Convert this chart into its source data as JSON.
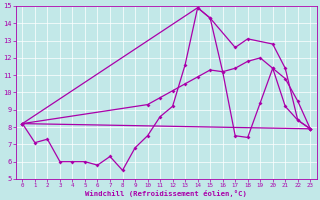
{
  "xlabel": "Windchill (Refroidissement éolien,°C)",
  "xlim": [
    -0.5,
    23.5
  ],
  "ylim": [
    5,
    15
  ],
  "xticks": [
    0,
    1,
    2,
    3,
    4,
    5,
    6,
    7,
    8,
    9,
    10,
    11,
    12,
    13,
    14,
    15,
    16,
    17,
    18,
    19,
    20,
    21,
    22,
    23
  ],
  "yticks": [
    5,
    6,
    7,
    8,
    9,
    10,
    11,
    12,
    13,
    14,
    15
  ],
  "bg_color": "#c2e8e8",
  "line_color": "#aa00aa",
  "line1_x": [
    0,
    1,
    2,
    3,
    4,
    5,
    6,
    7,
    8,
    9,
    10,
    11,
    12,
    13,
    14,
    15,
    16,
    17,
    18,
    19,
    20,
    21,
    22,
    23
  ],
  "line1_y": [
    8.2,
    7.1,
    7.3,
    6.0,
    6.0,
    6.0,
    5.8,
    6.3,
    5.5,
    6.8,
    7.5,
    8.6,
    9.2,
    11.6,
    14.9,
    14.3,
    11.2,
    7.5,
    7.4,
    9.4,
    11.4,
    9.2,
    8.4,
    7.9
  ],
  "line2_x": [
    0,
    14,
    15,
    17,
    18,
    20,
    21,
    22,
    23
  ],
  "line2_y": [
    8.2,
    14.9,
    14.3,
    12.6,
    13.1,
    12.8,
    11.4,
    8.4,
    7.9
  ],
  "line3_x": [
    0,
    10,
    11,
    12,
    13,
    14,
    15,
    16,
    17,
    18,
    19,
    20,
    21,
    22,
    23
  ],
  "line3_y": [
    8.2,
    9.3,
    9.7,
    10.1,
    10.5,
    10.9,
    11.3,
    11.2,
    11.4,
    11.8,
    12.0,
    11.4,
    10.8,
    9.5,
    7.9
  ],
  "line4_x": [
    0,
    23
  ],
  "line4_y": [
    8.2,
    7.9
  ]
}
